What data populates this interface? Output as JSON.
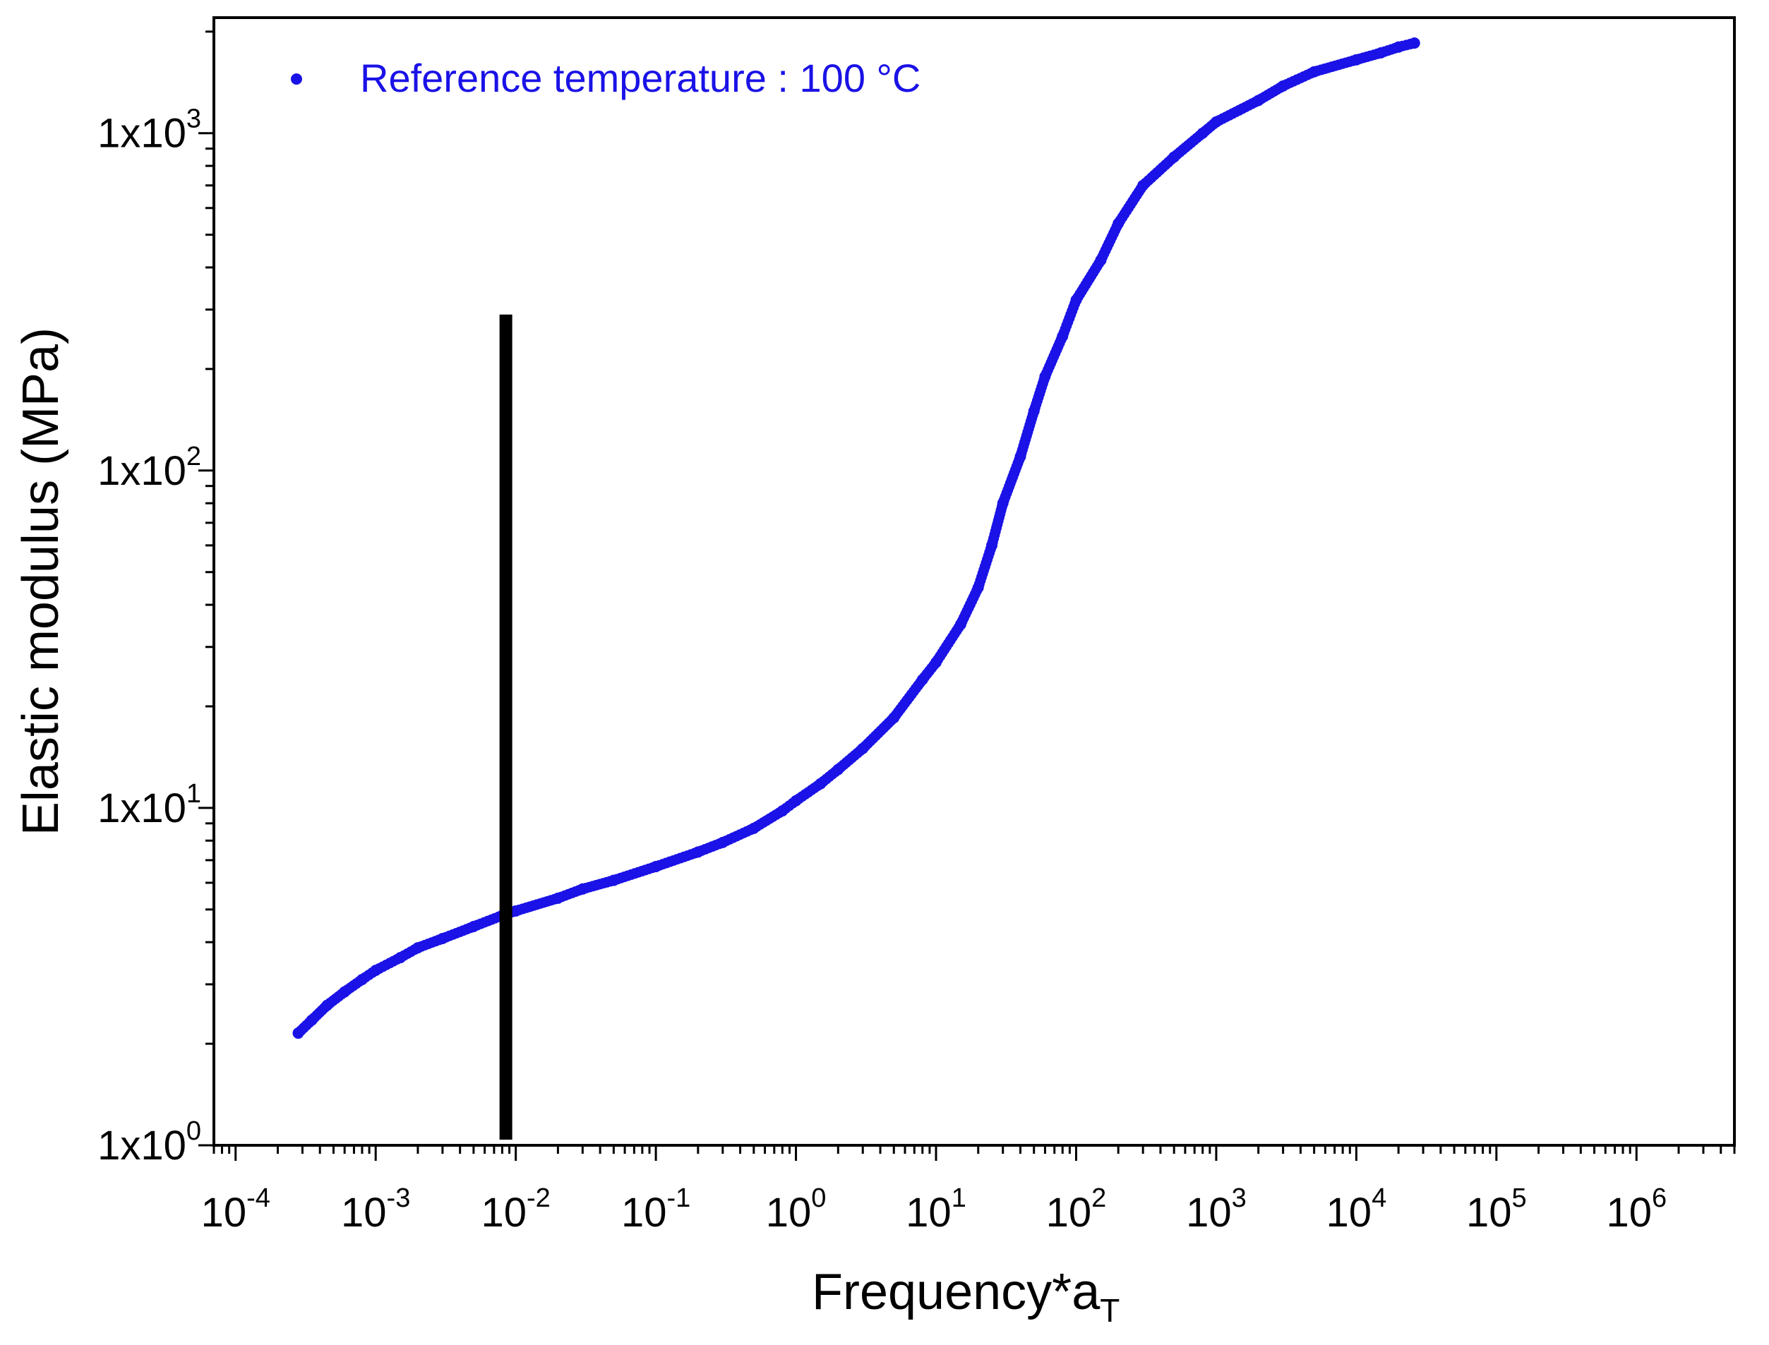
{
  "colors": {
    "series": "#1a12e6",
    "axis": "#000000",
    "marker_line": "#000000",
    "background": "#ffffff"
  },
  "chart_data": {
    "type": "scatter",
    "title": "",
    "xlabel": {
      "base": "Frequency*a",
      "subscript": "T"
    },
    "ylabel": "Elastic modulus (MPa)",
    "xscale": "log",
    "yscale": "log",
    "xlim": [
      7e-05,
      5000000
    ],
    "ylim": [
      1,
      2200
    ],
    "grid": false,
    "legend": {
      "position": "top-left",
      "entries": [
        "Reference temperature : 100 °C"
      ]
    },
    "xticks": [
      {
        "value": 0.0001,
        "base": "10",
        "exp": "-4"
      },
      {
        "value": 0.001,
        "base": "10",
        "exp": "-3"
      },
      {
        "value": 0.01,
        "base": "10",
        "exp": "-2"
      },
      {
        "value": 0.1,
        "base": "10",
        "exp": "-1"
      },
      {
        "value": 1,
        "base": "10",
        "exp": "0"
      },
      {
        "value": 10,
        "base": "10",
        "exp": "1"
      },
      {
        "value": 100,
        "base": "10",
        "exp": "2"
      },
      {
        "value": 1000,
        "base": "10",
        "exp": "3"
      },
      {
        "value": 10000,
        "base": "10",
        "exp": "4"
      },
      {
        "value": 100000,
        "base": "10",
        "exp": "5"
      },
      {
        "value": 1000000,
        "base": "10",
        "exp": "6"
      }
    ],
    "yticks": [
      {
        "value": 1,
        "base": "1x10",
        "exp": "0"
      },
      {
        "value": 10,
        "base": "1x10",
        "exp": "1"
      },
      {
        "value": 100,
        "base": "1x10",
        "exp": "2"
      },
      {
        "value": 1000,
        "base": "1x10",
        "exp": "3"
      }
    ],
    "series": [
      {
        "name": "Reference temperature : 100 °C",
        "points": [
          [
            0.00028,
            2.15
          ],
          [
            0.00035,
            2.35
          ],
          [
            0.00045,
            2.6
          ],
          [
            0.0006,
            2.85
          ],
          [
            0.0008,
            3.1
          ],
          [
            0.001,
            3.3
          ],
          [
            0.0015,
            3.6
          ],
          [
            0.002,
            3.85
          ],
          [
            0.003,
            4.1
          ],
          [
            0.005,
            4.45
          ],
          [
            0.008,
            4.8
          ],
          [
            0.01,
            4.95
          ],
          [
            0.02,
            5.4
          ],
          [
            0.03,
            5.75
          ],
          [
            0.05,
            6.1
          ],
          [
            0.1,
            6.7
          ],
          [
            0.2,
            7.4
          ],
          [
            0.3,
            7.9
          ],
          [
            0.5,
            8.7
          ],
          [
            0.8,
            9.8
          ],
          [
            1,
            10.5
          ],
          [
            1.5,
            11.8
          ],
          [
            2,
            13
          ],
          [
            3,
            15
          ],
          [
            5,
            18.5
          ],
          [
            8,
            24
          ],
          [
            10,
            27
          ],
          [
            15,
            35
          ],
          [
            20,
            45
          ],
          [
            25,
            60
          ],
          [
            30,
            80
          ],
          [
            40,
            110
          ],
          [
            50,
            150
          ],
          [
            60,
            190
          ],
          [
            80,
            250
          ],
          [
            100,
            320
          ],
          [
            150,
            420
          ],
          [
            200,
            540
          ],
          [
            300,
            700
          ],
          [
            500,
            850
          ],
          [
            800,
            1000
          ],
          [
            1000,
            1080
          ],
          [
            2000,
            1250
          ],
          [
            3000,
            1380
          ],
          [
            5000,
            1520
          ],
          [
            10000,
            1650
          ],
          [
            15000,
            1730
          ],
          [
            20000,
            1800
          ],
          [
            26000,
            1850
          ]
        ]
      }
    ],
    "annotations": [
      {
        "type": "vertical-bar",
        "x": 0.0085,
        "y_from": 1,
        "y_to": 290
      }
    ]
  }
}
